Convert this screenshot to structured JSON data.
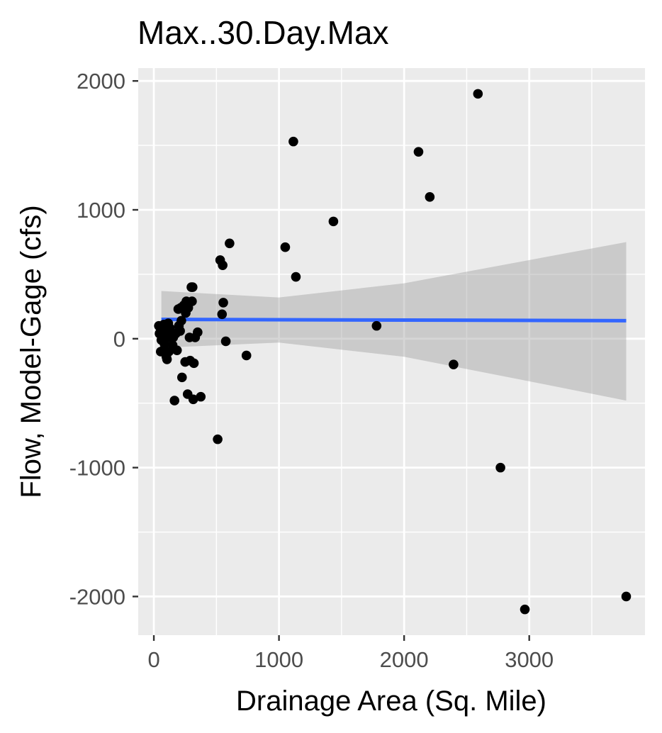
{
  "chart_data": {
    "type": "scatter",
    "title": "Max..30.Day.Max",
    "xlabel": "Drainage Area (Sq. Mile)",
    "ylabel": "Flow, Model-Gage (cfs)",
    "xlim": [
      -125,
      3925
    ],
    "ylim": [
      -2300,
      2100
    ],
    "x_ticks": [
      0,
      1000,
      2000,
      3000
    ],
    "x_tick_labels": [
      "0",
      "1000",
      "2000",
      "3000"
    ],
    "y_ticks": [
      -2000,
      -1000,
      0,
      1000,
      2000
    ],
    "y_tick_labels": [
      "-2000",
      "-1000",
      "0",
      "1000",
      "2000"
    ],
    "grid": true,
    "series": [
      {
        "type": "scatter",
        "color": "#000000",
        "points": [
          [
            40,
            100
          ],
          [
            45,
            40
          ],
          [
            50,
            90
          ],
          [
            55,
            -100
          ],
          [
            60,
            -10
          ],
          [
            65,
            60
          ],
          [
            70,
            20
          ],
          [
            75,
            -90
          ],
          [
            80,
            110
          ],
          [
            85,
            -40
          ],
          [
            90,
            60
          ],
          [
            95,
            30
          ],
          [
            100,
            -140
          ],
          [
            105,
            -160
          ],
          [
            110,
            10
          ],
          [
            115,
            120
          ],
          [
            120,
            -100
          ],
          [
            130,
            80
          ],
          [
            140,
            20
          ],
          [
            150,
            -50
          ],
          [
            155,
            10
          ],
          [
            165,
            -480
          ],
          [
            175,
            40
          ],
          [
            185,
            -90
          ],
          [
            195,
            230
          ],
          [
            200,
            100
          ],
          [
            210,
            60
          ],
          [
            215,
            240
          ],
          [
            220,
            140
          ],
          [
            225,
            -300
          ],
          [
            240,
            260
          ],
          [
            250,
            -180
          ],
          [
            255,
            200
          ],
          [
            260,
            290
          ],
          [
            270,
            -430
          ],
          [
            275,
            240
          ],
          [
            285,
            10
          ],
          [
            290,
            -170
          ],
          [
            300,
            400
          ],
          [
            305,
            290
          ],
          [
            310,
            400
          ],
          [
            315,
            -470
          ],
          [
            320,
            -190
          ],
          [
            330,
            10
          ],
          [
            350,
            50
          ],
          [
            375,
            -450
          ],
          [
            510,
            -780
          ],
          [
            530,
            610
          ],
          [
            545,
            190
          ],
          [
            550,
            570
          ],
          [
            555,
            280
          ],
          [
            575,
            -20
          ],
          [
            605,
            740
          ],
          [
            740,
            -130
          ],
          [
            1050,
            710
          ],
          [
            1115,
            1530
          ],
          [
            1135,
            480
          ],
          [
            1435,
            910
          ],
          [
            1780,
            100
          ],
          [
            2115,
            1450
          ],
          [
            2205,
            1100
          ],
          [
            2395,
            -200
          ],
          [
            2590,
            1900
          ],
          [
            2770,
            -1000
          ],
          [
            2965,
            -2100
          ],
          [
            3775,
            -2000
          ]
        ]
      }
    ],
    "trend": {
      "type": "line",
      "color": "#3366FF",
      "x": [
        60,
        3775
      ],
      "y": [
        150,
        140
      ]
    },
    "confidence_band": {
      "type": "area",
      "color": "#999999",
      "x": [
        60,
        1000,
        2000,
        3000,
        3775
      ],
      "upper": [
        370,
        320,
        430,
        610,
        750
      ],
      "lower": [
        -70,
        -30,
        -140,
        -330,
        -480
      ]
    }
  }
}
